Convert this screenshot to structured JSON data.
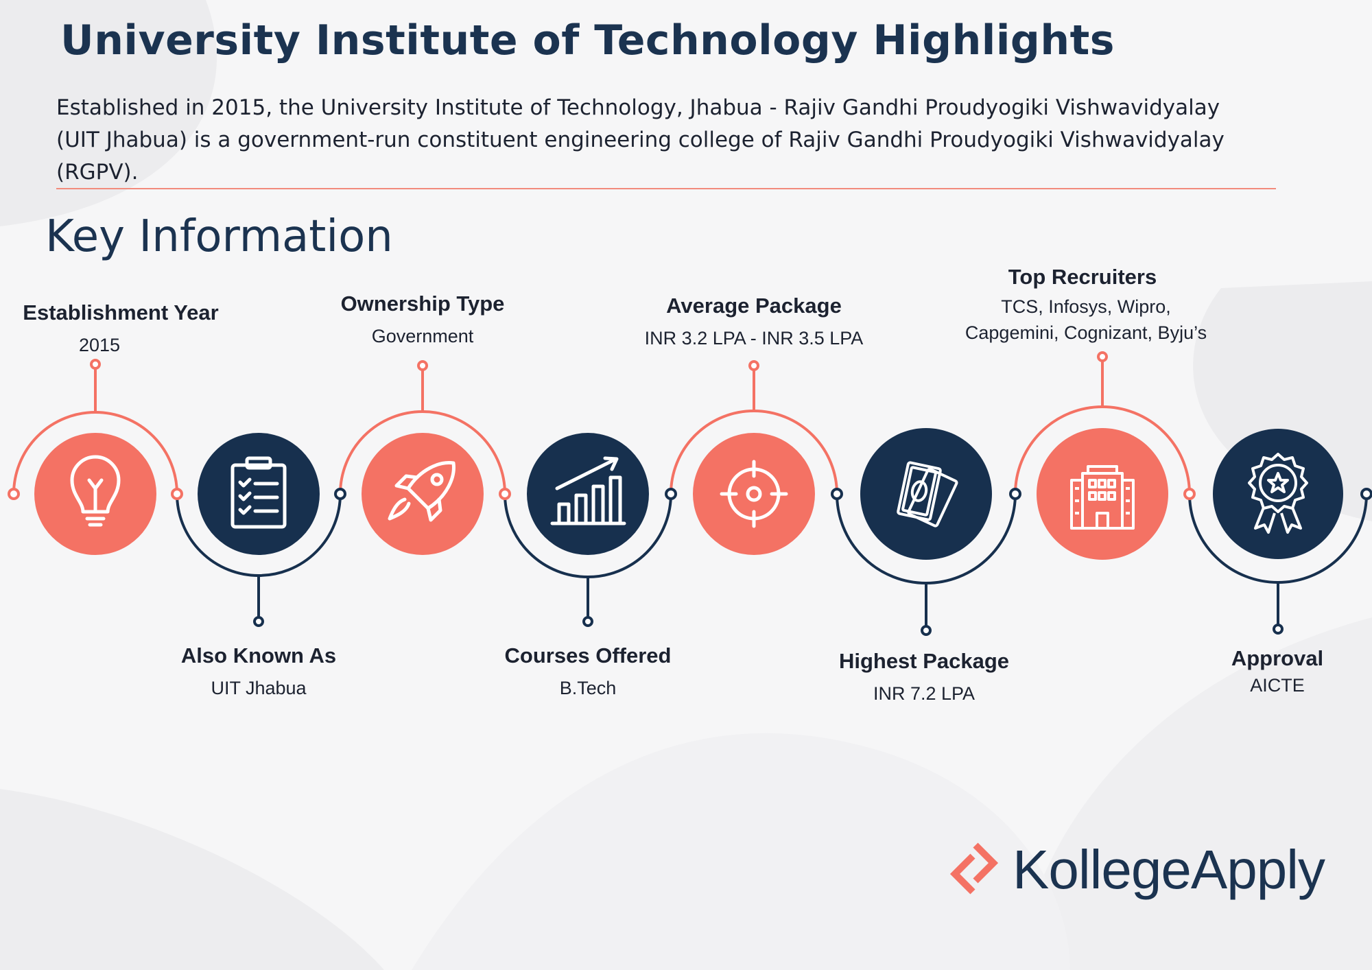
{
  "header": {
    "title": "University Institute of Technology Highlights",
    "description": "Established in 2015, the University Institute of Technology, Jhabua - Rajiv Gandhi Proudyogiki Vishwavidyalay (UIT Jhabua) is a government-run constituent engineering college of Rajiv Gandhi Proudyogiki Vishwavidyalay (RGPV)."
  },
  "section_title": "Key Information",
  "items": [
    {
      "heading": "Establishment Year",
      "value": "2015",
      "icon": "lightbulb-icon",
      "color": "#f47264"
    },
    {
      "heading": "Also Known As",
      "value": "UIT Jhabua",
      "icon": "clipboard-checklist-icon",
      "color": "#17304e"
    },
    {
      "heading": "Ownership Type",
      "value": "Government",
      "icon": "rocket-icon",
      "color": "#f47264"
    },
    {
      "heading": "Courses Offered",
      "value": "B.Tech",
      "icon": "growth-chart-icon",
      "color": "#17304e"
    },
    {
      "heading": "Average Package",
      "value": "INR 3.2 LPA - INR 3.5 LPA",
      "icon": "target-icon",
      "color": "#f47264"
    },
    {
      "heading": "Highest Package",
      "value": "INR 7.2 LPA",
      "icon": "money-icon",
      "color": "#17304e"
    },
    {
      "heading": "Top Recruiters",
      "value_lines": [
        "TCS, Infosys, Wipro,",
        "Capgemini, Cognizant, Byju’s"
      ],
      "icon": "building-icon",
      "color": "#f47264"
    },
    {
      "heading": "Approval",
      "value": "AICTE",
      "icon": "award-badge-icon",
      "color": "#17304e"
    }
  ],
  "brand": {
    "name": "KollegeApply",
    "icon": "kollegeapply-logo-icon",
    "accent": "#f47264",
    "primary": "#1b3350"
  }
}
